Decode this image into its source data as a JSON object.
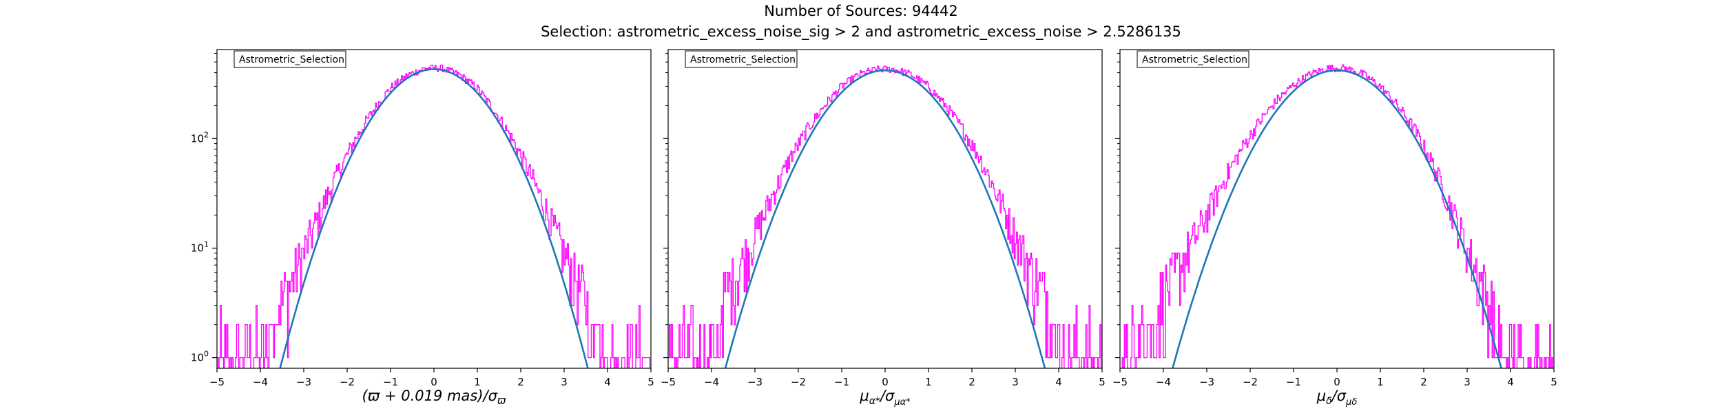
{
  "figure": {
    "title": "Number of Sources: 94442",
    "subtitle": "Selection: astrometric_excess_noise_sig > 2 and astrometric_excess_noise > 2.5286135"
  },
  "colors": {
    "histogram": "#ff00ff",
    "fit": "#1f77b4",
    "axes": "#000000"
  },
  "chart_data": [
    {
      "type": "histogram",
      "legend": "Astrometric_Selection",
      "legend_position": "top-left",
      "xlabel": "(ϖ + 0.019 mas)/σϖ",
      "ylabel": "",
      "yscale": "log",
      "xlim": [
        -5,
        5
      ],
      "ylim": [
        0.8,
        650
      ],
      "xticks": [
        -5,
        -4,
        -3,
        -2,
        -1,
        0,
        1,
        2,
        3,
        4,
        5
      ],
      "ytick_labels": [
        {
          "value": 1,
          "base": "10",
          "exp": "0"
        },
        {
          "value": 10,
          "base": "10",
          "exp": "1"
        },
        {
          "value": 100,
          "base": "10",
          "exp": "2"
        }
      ],
      "histogram": {
        "x": [
          -5.0,
          -4.6,
          -4.2,
          -3.8,
          -3.4,
          -3.0,
          -2.6,
          -2.2,
          -1.8,
          -1.4,
          -1.0,
          -0.6,
          -0.2,
          0.2,
          0.6,
          1.0,
          1.4,
          1.8,
          2.2,
          2.6,
          3.0,
          3.4,
          3.8,
          4.2,
          4.6,
          5.0
        ],
        "y": [
          1,
          1,
          1.5,
          2,
          4,
          9,
          22,
          50,
          100,
          180,
          290,
          380,
          440,
          440,
          380,
          290,
          180,
          100,
          50,
          22,
          9,
          4,
          2,
          1.5,
          1,
          1
        ],
        "max_count": 470
      },
      "fit": {
        "model": "gaussian",
        "amplitude": 430,
        "mean": 0,
        "sigma": 1.0,
        "x_range": [
          -3.75,
          3.75
        ]
      }
    },
    {
      "type": "histogram",
      "legend": "Astrometric_Selection",
      "legend_position": "top-left",
      "xlabel": "μα*/σμα*",
      "ylabel": "",
      "yscale": "log",
      "xlim": [
        -5,
        5
      ],
      "ylim": [
        0.8,
        650
      ],
      "xticks": [
        -5,
        -4,
        -3,
        -2,
        -1,
        0,
        1,
        2,
        3,
        4,
        5
      ],
      "ytick_labels": [],
      "histogram": {
        "x": [
          -5.0,
          -4.6,
          -4.2,
          -3.8,
          -3.4,
          -3.0,
          -2.6,
          -2.2,
          -1.8,
          -1.4,
          -1.0,
          -0.6,
          -0.2,
          0.2,
          0.6,
          1.0,
          1.4,
          1.8,
          2.2,
          2.6,
          3.0,
          3.4,
          3.8,
          4.2,
          4.6,
          5.0
        ],
        "y": [
          1,
          1,
          1.5,
          3,
          6,
          13,
          30,
          65,
          120,
          200,
          300,
          385,
          430,
          430,
          385,
          300,
          200,
          120,
          65,
          30,
          13,
          6,
          3,
          1.5,
          1,
          1
        ],
        "max_count": 460
      },
      "fit": {
        "model": "gaussian",
        "amplitude": 420,
        "mean": 0,
        "sigma": 1.04,
        "x_range": [
          -3.9,
          3.9
        ]
      }
    },
    {
      "type": "histogram",
      "legend": "Astrometric_Selection",
      "legend_position": "top-left",
      "xlabel": "μδ/σμδ",
      "ylabel": "",
      "yscale": "log",
      "xlim": [
        -5,
        5
      ],
      "ylim": [
        0.8,
        650
      ],
      "xticks": [
        -5,
        -4,
        -3,
        -2,
        -1,
        0,
        1,
        2,
        3,
        4,
        5
      ],
      "ytick_labels": [],
      "histogram": {
        "x": [
          -5.0,
          -4.6,
          -4.2,
          -3.8,
          -3.4,
          -3.0,
          -2.6,
          -2.2,
          -1.8,
          -1.4,
          -1.0,
          -0.6,
          -0.2,
          0.2,
          0.6,
          1.0,
          1.4,
          1.8,
          2.2,
          2.6,
          3.0,
          3.4,
          3.8,
          4.2,
          4.6,
          5.0
        ],
        "y": [
          1,
          2,
          3,
          5,
          10,
          20,
          42,
          80,
          140,
          220,
          310,
          390,
          440,
          440,
          390,
          300,
          200,
          120,
          60,
          25,
          10,
          4,
          2,
          1.5,
          1,
          1
        ],
        "max_count": 480
      },
      "fit": {
        "model": "gaussian",
        "amplitude": 420,
        "mean": 0,
        "sigma": 1.07,
        "x_range": [
          -4.05,
          4.0
        ]
      }
    }
  ]
}
